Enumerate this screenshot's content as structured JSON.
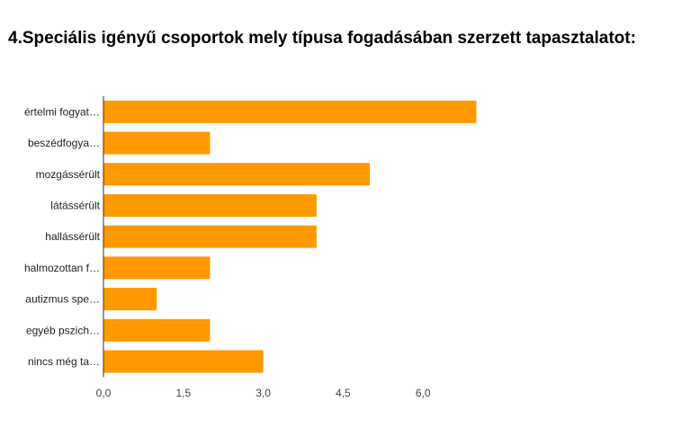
{
  "title": "4.Speciális igényű csoportok mely típusa fogadásában szerzett tapasztalatot:",
  "chart_data": {
    "type": "bar",
    "orientation": "horizontal",
    "categories": [
      "értelmi fogyat…",
      "beszédfogya…",
      "mozgássérült",
      "látássérült",
      "hallássérült",
      "halmozottan f…",
      "autizmus spe…",
      "egyéb pszich…",
      "nincs még ta…"
    ],
    "values": [
      7,
      2,
      5,
      4,
      4,
      2,
      1,
      2,
      3
    ],
    "xticks": [
      "0,0",
      "1,5",
      "3,0",
      "4,5",
      "6,0"
    ],
    "xtick_values": [
      0,
      1.5,
      3,
      4.5,
      6
    ],
    "xlim": [
      0,
      7.5
    ],
    "bar_color": "#ff9900",
    "grid": false,
    "legend": "none"
  }
}
